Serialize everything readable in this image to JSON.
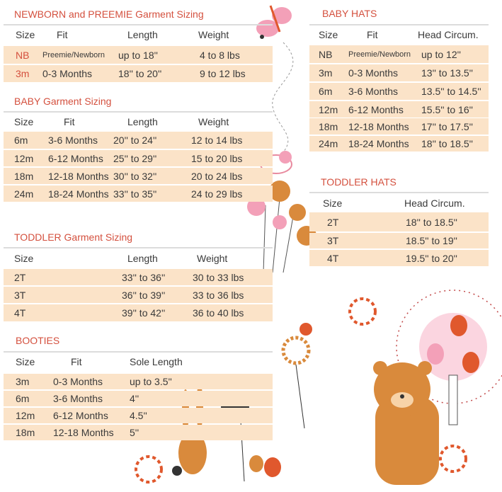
{
  "tables": [
    {
      "id": "newborn",
      "title": "NEWBORN and PREEMIE Garment Sizing",
      "headers": [
        "Size",
        "Fit",
        "Length",
        "Weight"
      ],
      "rows": [
        [
          "NB",
          "Preemie/Newborn",
          "up to 18''",
          "4 to 8 lbs"
        ],
        [
          "3m",
          "0-3 Months",
          "18'' to 20''",
          "9 to 12 lbs"
        ]
      ]
    },
    {
      "id": "baby",
      "title": "BABY Garment Sizing",
      "headers": [
        "Size",
        "Fit",
        "Length",
        "Weight"
      ],
      "rows": [
        [
          "6m",
          "3-6 Months",
          "20'' to 24''",
          "12 to 14 lbs"
        ],
        [
          "12m",
          "6-12 Months",
          "25'' to 29''",
          "15 to 20 lbs"
        ],
        [
          "18m",
          "12-18 Months",
          "30'' to 32''",
          "20 to 24 lbs"
        ],
        [
          "24m",
          "18-24 Months",
          "33'' to 35''",
          "24 to 29 lbs"
        ]
      ]
    },
    {
      "id": "toddler",
      "title": "TODDLER Garment Sizing",
      "headers": [
        "Size",
        "Length",
        "Weight"
      ],
      "rows": [
        [
          "2T",
          "33'' to 36''",
          "30 to 33 lbs"
        ],
        [
          "3T",
          "36'' to 39''",
          "33 to 36 lbs"
        ],
        [
          "4T",
          "39'' to 42''",
          "36 to 40 lbs"
        ]
      ]
    },
    {
      "id": "booties",
      "title": "BOOTIES",
      "headers": [
        "Size",
        "Fit",
        "Sole Length"
      ],
      "rows": [
        [
          "3m",
          "0-3 Months",
          "up to 3.5''"
        ],
        [
          "6m",
          "3-6 Months",
          "4''"
        ],
        [
          "12m",
          "6-12 Months",
          "4.5''"
        ],
        [
          "18m",
          "12-18 Months",
          "5''"
        ]
      ]
    },
    {
      "id": "baby-hats",
      "title": "BABY HATS",
      "headers": [
        "Size",
        "Fit",
        "Head Circum."
      ],
      "rows": [
        [
          "NB",
          "Preemie/Newborn",
          "up to 12''"
        ],
        [
          "3m",
          "0-3 Months",
          "13'' to 13.5''"
        ],
        [
          "6m",
          "3-6 Months",
          "13.5'' to 14.5''"
        ],
        [
          "12m",
          "6-12 Months",
          "15.5'' to 16''"
        ],
        [
          "18m",
          "12-18 Months",
          "17'' to 17.5''"
        ],
        [
          "24m",
          "18-24 Months",
          "18'' to 18.5''"
        ]
      ]
    },
    {
      "id": "toddler-hats",
      "title": "TODDLER HATS",
      "headers": [
        "Size",
        "Head Circum."
      ],
      "rows": [
        [
          "2T",
          "18'' to 18.5''"
        ],
        [
          "3T",
          "18.5'' to 19''"
        ],
        [
          "4T",
          "19.5'' to 20''"
        ]
      ]
    }
  ],
  "colors": {
    "title": "#d4503e",
    "row_bg": "#fbe3c8",
    "text": "#3a3a3a",
    "rule": "#dcdcdc"
  },
  "illustrations": [
    "butterfly",
    "bird",
    "flowers",
    "ladybug",
    "sun-tree-with-pears",
    "bear",
    "bunny",
    "rose"
  ]
}
